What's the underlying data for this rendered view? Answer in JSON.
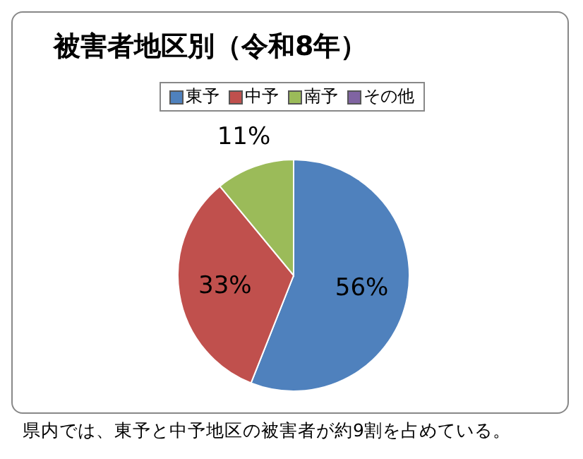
{
  "chart_data": {
    "type": "pie",
    "title": "被害者地区別（令和8年）",
    "categories": [
      "東予",
      "中予",
      "南予",
      "その他"
    ],
    "values": [
      56,
      33,
      11,
      0
    ],
    "colors": [
      "#4f81bd",
      "#c0504d",
      "#9bbb59",
      "#8064a2"
    ],
    "value_labels": [
      "56%",
      "33%",
      "11%",
      null
    ],
    "legend": "top",
    "annotations": [
      "県内では、東予と中予地区の被害者が約9割を占めている。"
    ]
  }
}
